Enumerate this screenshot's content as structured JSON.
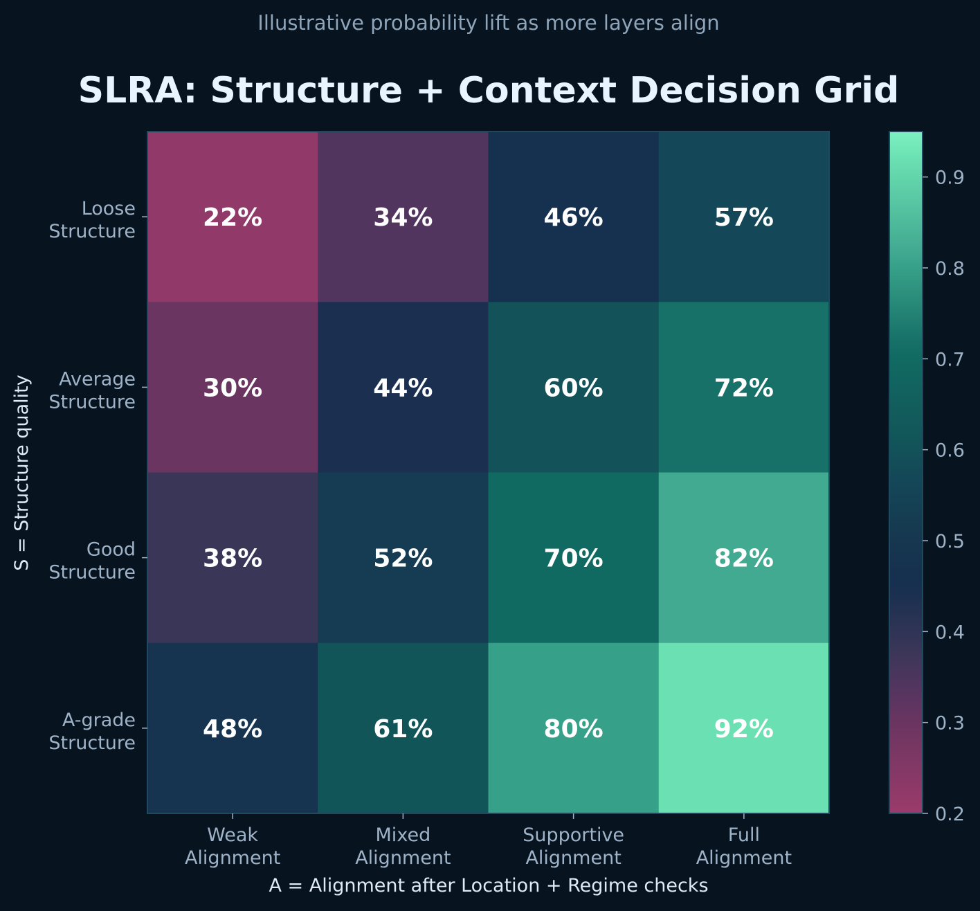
{
  "chart_data": {
    "type": "heatmap",
    "subtitle": "Illustrative probability lift as more layers align",
    "title": "SLRA: Structure + Context Decision Grid",
    "xlabel": "A = Alignment after Location + Regime checks",
    "ylabel": "S = Structure quality",
    "x_categories": [
      [
        "Weak",
        "Alignment"
      ],
      [
        "Mixed",
        "Alignment"
      ],
      [
        "Supportive",
        "Alignment"
      ],
      [
        "Full",
        "Alignment"
      ]
    ],
    "y_categories": [
      [
        "Loose",
        "Structure"
      ],
      [
        "Average",
        "Structure"
      ],
      [
        "Good",
        "Structure"
      ],
      [
        "A-grade",
        "Structure"
      ]
    ],
    "values": [
      [
        0.22,
        0.34,
        0.46,
        0.57
      ],
      [
        0.3,
        0.44,
        0.6,
        0.72
      ],
      [
        0.38,
        0.52,
        0.7,
        0.82
      ],
      [
        0.48,
        0.61,
        0.8,
        0.92
      ]
    ],
    "labels": [
      [
        "22%",
        "34%",
        "46%",
        "57%"
      ],
      [
        "30%",
        "44%",
        "60%",
        "72%"
      ],
      [
        "38%",
        "52%",
        "70%",
        "82%"
      ],
      [
        "48%",
        "61%",
        "80%",
        "92%"
      ]
    ],
    "colorbar": {
      "range": [
        0.2,
        0.95
      ],
      "ticks": [
        "0.2",
        "0.3",
        "0.4",
        "0.5",
        "0.6",
        "0.7",
        "0.8",
        "0.9"
      ],
      "colormap": [
        [
          0.2,
          "#9b3b6b"
        ],
        [
          0.3,
          "#6a3560"
        ],
        [
          0.34,
          "#52355f"
        ],
        [
          0.38,
          "#3a3658"
        ],
        [
          0.44,
          "#1b3050"
        ],
        [
          0.46,
          "#16304f"
        ],
        [
          0.5,
          "#16374f"
        ],
        [
          0.57,
          "#144858"
        ],
        [
          0.61,
          "#125559"
        ],
        [
          0.7,
          "#116a62"
        ],
        [
          0.72,
          "#177168"
        ],
        [
          0.8,
          "#37a088"
        ],
        [
          0.82,
          "#42aa91"
        ],
        [
          0.92,
          "#6be0b2"
        ],
        [
          0.95,
          "#7cf0c0"
        ]
      ]
    },
    "colors": {
      "background": "#07131f",
      "title": "#e8f4ff",
      "subtitle": "#8fa5ba",
      "tick": "#9fb3c8",
      "axis_label": "#e0eaf5",
      "cell_text": "#ffffff",
      "frame": "#1f4a5e"
    }
  }
}
